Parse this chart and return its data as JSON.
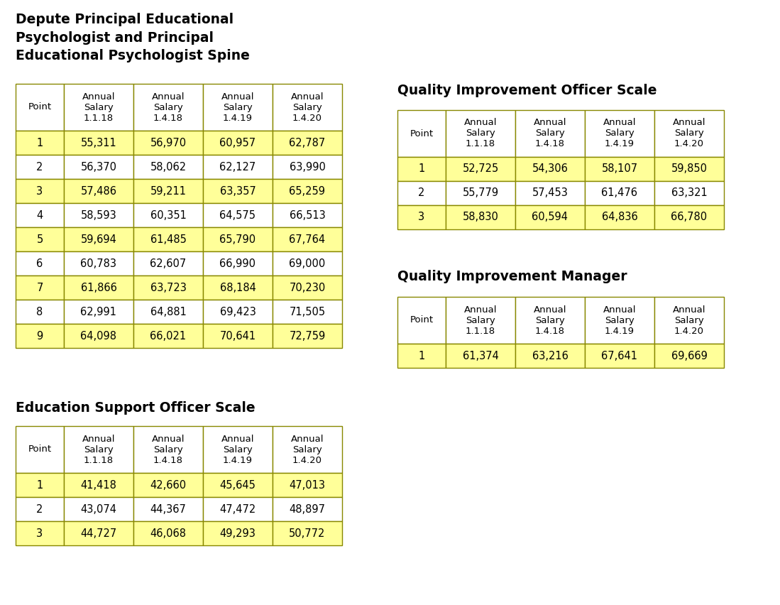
{
  "background_color": "#ffffff",
  "title1": "Depute Principal Educational\nPsychologist and Principal\nEducational Psychologist Spine",
  "title2": "Quality Improvement Officer Scale",
  "title3": "Education Support Officer Scale",
  "title4": "Quality Improvement Manager",
  "col_headers": [
    "Point",
    "Annual\nSalary\n1.1.18",
    "Annual\nSalary\n1.4.18",
    "Annual\nSalary\n1.4.19",
    "Annual\nSalary\n1.4.20"
  ],
  "table1_data": [
    [
      "1",
      "55,311",
      "56,970",
      "60,957",
      "62,787"
    ],
    [
      "2",
      "56,370",
      "58,062",
      "62,127",
      "63,990"
    ],
    [
      "3",
      "57,486",
      "59,211",
      "63,357",
      "65,259"
    ],
    [
      "4",
      "58,593",
      "60,351",
      "64,575",
      "66,513"
    ],
    [
      "5",
      "59,694",
      "61,485",
      "65,790",
      "67,764"
    ],
    [
      "6",
      "60,783",
      "62,607",
      "66,990",
      "69,000"
    ],
    [
      "7",
      "61,866",
      "63,723",
      "68,184",
      "70,230"
    ],
    [
      "8",
      "62,991",
      "64,881",
      "69,423",
      "71,505"
    ],
    [
      "9",
      "64,098",
      "66,021",
      "70,641",
      "72,759"
    ]
  ],
  "table2_data": [
    [
      "1",
      "52,725",
      "54,306",
      "58,107",
      "59,850"
    ],
    [
      "2",
      "55,779",
      "57,453",
      "61,476",
      "63,321"
    ],
    [
      "3",
      "58,830",
      "60,594",
      "64,836",
      "66,780"
    ]
  ],
  "table3_data": [
    [
      "1",
      "41,418",
      "42,660",
      "45,645",
      "47,013"
    ],
    [
      "2",
      "43,074",
      "44,367",
      "47,472",
      "48,897"
    ],
    [
      "3",
      "44,727",
      "46,068",
      "49,293",
      "50,772"
    ]
  ],
  "table4_data": [
    [
      "1",
      "61,374",
      "63,216",
      "67,641",
      "69,669"
    ]
  ],
  "yellow_rows_t1": [
    0,
    2,
    4,
    6,
    8
  ],
  "yellow_rows_t2": [
    0,
    2
  ],
  "yellow_rows_t3": [
    0,
    2
  ],
  "yellow_rows_t4": [
    0
  ],
  "yellow_color": "#FFFF99",
  "white_color": "#FFFFFF",
  "border_color": "#888800",
  "text_color": "#000000",
  "title_fontsize": 13.5,
  "header_fontsize": 9.5,
  "cell_fontsize": 10.5
}
